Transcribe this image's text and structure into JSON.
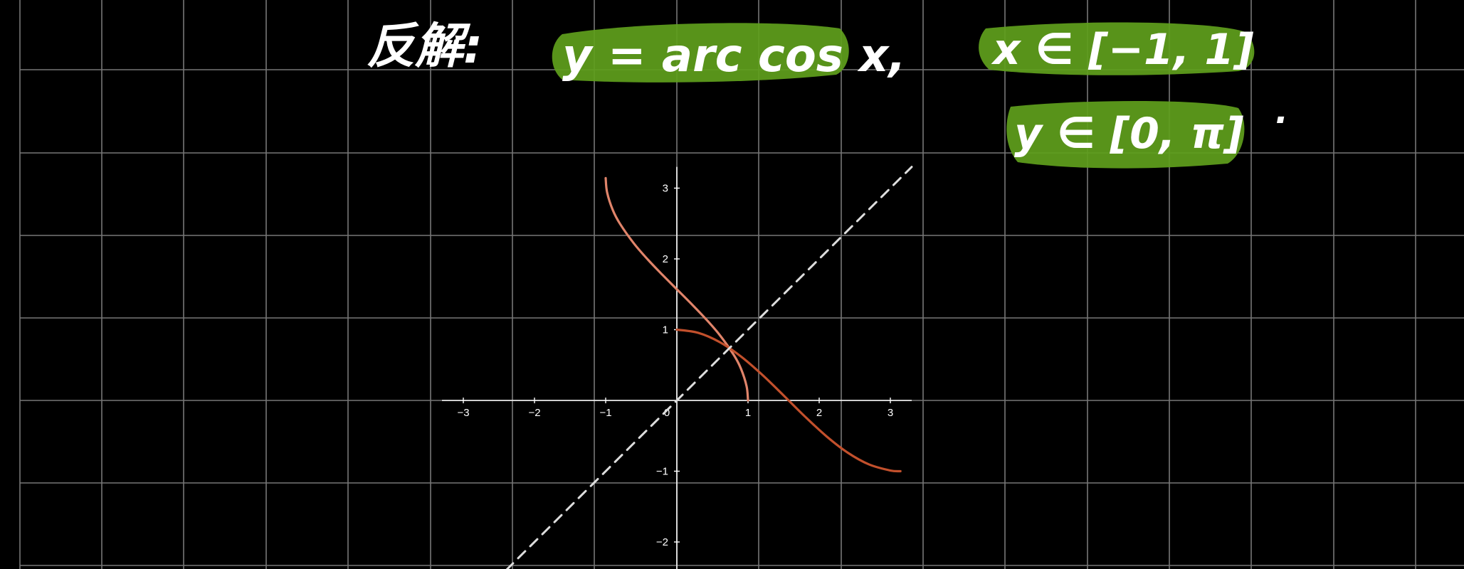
{
  "board": {
    "background": "#000000",
    "grid_color": "#777777"
  },
  "notes": {
    "label": "反解:",
    "equation": "y = arc cos x,",
    "domain": "x ∈ [−1, 1]",
    "range": "y ∈ [0, π]",
    "dot": "·",
    "highlight_color": "#5fa01c"
  },
  "chart_data": {
    "type": "line",
    "title": "",
    "xlabel": "",
    "ylabel": "",
    "xlim": [
      -3.3,
      3.3
    ],
    "ylim": [
      -2.3,
      3.3
    ],
    "x_ticks": [
      -3,
      -2,
      -1,
      0,
      1,
      2,
      3
    ],
    "y_ticks": [
      -2,
      -1,
      1,
      2,
      3
    ],
    "x_tick_labels": [
      "−3",
      "−2",
      "−1",
      "0",
      "1",
      "2",
      "3"
    ],
    "y_tick_labels": [
      "−2",
      "−1",
      "1",
      "2",
      "3"
    ],
    "series": [
      {
        "name": "y = arccos x",
        "color": "#e0846a",
        "x": [
          -1,
          -0.98,
          -0.9,
          -0.8,
          -0.6,
          -0.4,
          -0.2,
          0,
          0.2,
          0.4,
          0.6,
          0.8,
          0.9,
          0.98,
          1
        ],
        "y": [
          3.1416,
          2.9413,
          2.6906,
          2.4981,
          2.2143,
          1.9823,
          1.7722,
          1.5708,
          1.3694,
          1.1593,
          0.9273,
          0.6435,
          0.451,
          0.2003,
          0
        ]
      },
      {
        "name": "y = cos x",
        "color": "#c2502c",
        "x": [
          0,
          0.3,
          0.6,
          0.9,
          1.2,
          1.5,
          1.8,
          2.1,
          2.4,
          2.7,
          3.0,
          3.1416
        ],
        "y": [
          1,
          0.9553,
          0.8253,
          0.6216,
          0.3624,
          0.0707,
          -0.2272,
          -0.5048,
          -0.7374,
          -0.9041,
          -0.99,
          -1
        ]
      },
      {
        "name": "y = x",
        "color": "#dddddd",
        "dashed": true,
        "x": [
          -2.4,
          3.3
        ],
        "y": [
          -2.4,
          3.3
        ]
      }
    ]
  }
}
